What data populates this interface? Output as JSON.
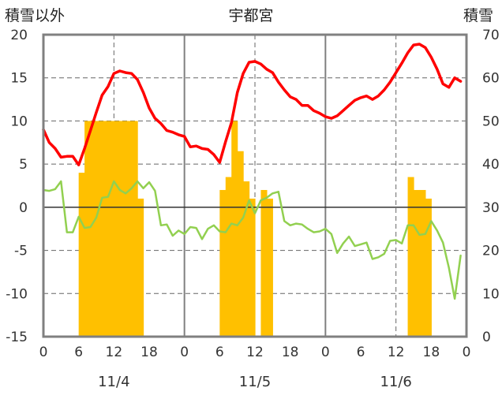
{
  "chart_data": {
    "type": "bar+line",
    "title": "宇都宮",
    "left_axis_label": "積雪以外",
    "right_axis_label": "積雪",
    "y_left": {
      "min": -15,
      "max": 20,
      "ticks": [
        -15,
        -10,
        -5,
        0,
        5,
        10,
        15,
        20
      ]
    },
    "y_right": {
      "min": 0,
      "max": 70,
      "ticks": [
        0,
        10,
        20,
        30,
        40,
        50,
        60,
        70
      ]
    },
    "x": {
      "hours_total": 72,
      "tick_labels": [
        "0",
        "6",
        "12",
        "18",
        "0",
        "6",
        "12",
        "18",
        "0",
        "6",
        "12",
        "18",
        "0"
      ],
      "dates": [
        "11/4",
        "11/5",
        "11/6"
      ],
      "major_grid_every": 24,
      "minor_grid_every": 12
    },
    "series": [
      {
        "kind": "bar",
        "axis": "right",
        "color": "#FFC000",
        "x": [
          6,
          7,
          8,
          9,
          10,
          11,
          12,
          13,
          14,
          15,
          16,
          30,
          31,
          32,
          33,
          34,
          35,
          37,
          38,
          62,
          63,
          64,
          65
        ],
        "values": [
          38,
          50,
          50,
          50,
          50,
          50,
          50,
          50,
          50,
          50,
          32,
          34,
          37,
          50,
          43,
          36,
          32,
          34,
          32,
          37,
          34,
          34,
          32
        ]
      },
      {
        "kind": "line",
        "axis": "left",
        "color": "#FF0000",
        "x": [
          0,
          1,
          2,
          3,
          4,
          5,
          6,
          7,
          8,
          9,
          10,
          11,
          12,
          13,
          14,
          15,
          16,
          17,
          18,
          19,
          20,
          21,
          22,
          23,
          24,
          25,
          26,
          27,
          28,
          29,
          30,
          31,
          32,
          33,
          34,
          35,
          36,
          37,
          38,
          39,
          40,
          41,
          42,
          43,
          44,
          45,
          46,
          47,
          48,
          49,
          50,
          51,
          52,
          53,
          54,
          55,
          56,
          57,
          58,
          59,
          60,
          61,
          62,
          63,
          64,
          65,
          66,
          67,
          68,
          69,
          70,
          71
        ],
        "values": [
          9,
          7.5,
          6.8,
          5.8,
          5.9,
          5.9,
          4.9,
          6.8,
          8.9,
          11,
          13,
          14,
          15.5,
          15.8,
          15.6,
          15.5,
          14.8,
          13.3,
          11.5,
          10.3,
          9.7,
          8.9,
          8.7,
          8.4,
          8.2,
          7,
          7.1,
          6.8,
          6.7,
          6.1,
          5.2,
          7.6,
          9.8,
          13.3,
          15.5,
          16.8,
          16.9,
          16.6,
          16,
          15.6,
          14.5,
          13.6,
          12.8,
          12.5,
          11.8,
          11.8,
          11.2,
          10.9,
          10.5,
          10.3,
          10.6,
          11.2,
          11.8,
          12.4,
          12.7,
          12.9,
          12.5,
          12.9,
          13.6,
          14.5,
          15.6,
          16.7,
          17.9,
          18.8,
          18.9,
          18.5,
          17.4,
          16,
          14.3,
          13.9,
          15,
          14.6
        ]
      },
      {
        "kind": "line",
        "axis": "left",
        "color": "#92D050",
        "x": [
          0,
          1,
          2,
          3,
          4,
          5,
          6,
          7,
          8,
          9,
          10,
          11,
          12,
          13,
          14,
          15,
          16,
          17,
          18,
          19,
          20,
          21,
          22,
          23,
          24,
          25,
          26,
          27,
          28,
          29,
          30,
          31,
          32,
          33,
          34,
          35,
          36,
          37,
          38,
          39,
          40,
          41,
          42,
          43,
          44,
          45,
          46,
          47,
          48,
          49,
          50,
          51,
          52,
          53,
          54,
          55,
          56,
          57,
          58,
          59,
          60,
          61,
          62,
          63,
          64,
          65,
          66,
          67,
          68,
          69,
          70,
          71
        ],
        "values": [
          2,
          1.9,
          2.1,
          3,
          -2.9,
          -2.9,
          -1.1,
          -2.4,
          -2.3,
          -1.2,
          1.1,
          1.2,
          3,
          2,
          1.6,
          2.2,
          3,
          2.2,
          2.9,
          1.9,
          -2.1,
          -2,
          -3.3,
          -2.7,
          -3.1,
          -2.3,
          -2.4,
          -3.7,
          -2.5,
          -2.1,
          -2.8,
          -2.9,
          -1.9,
          -2.1,
          -1.2,
          0.8,
          -0.7,
          0.8,
          1.1,
          1.6,
          1.8,
          -1.6,
          -2.1,
          -1.9,
          -2,
          -2.5,
          -2.9,
          -2.8,
          -2.5,
          -3.1,
          -5.3,
          -4.2,
          -3.4,
          -4.5,
          -4.3,
          -4.1,
          -6,
          -5.8,
          -5.4,
          -3.9,
          -3.8,
          -4.2,
          -2.1,
          -2.1,
          -3.2,
          -3.1,
          -1.6,
          -2.7,
          -4.1,
          -7,
          -10.6,
          -5.6
        ]
      }
    ]
  }
}
